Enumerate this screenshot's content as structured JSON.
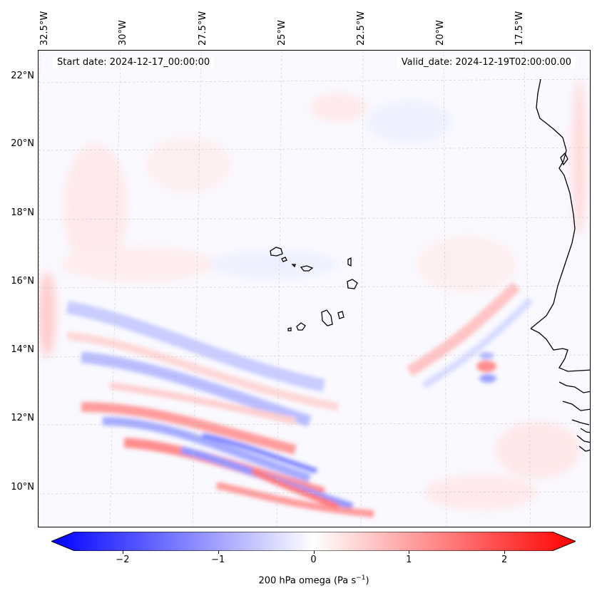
{
  "map": {
    "start_date": "Start date: 2024-12-17_00:00:00",
    "valid_date": "Valid_date: 2024-12-19T02:00:00.00",
    "lon_labels": [
      "32.5°W",
      "30°W",
      "27.5°W",
      "25°W",
      "22.5°W",
      "20°W",
      "17.5°W"
    ],
    "lat_labels": [
      "22°N",
      "20°N",
      "18°N",
      "16°N",
      "14°N",
      "12°N",
      "10°N"
    ],
    "colors": {
      "neg": "#0000ff",
      "pos": "#ff0000",
      "zero": "#ffffff",
      "coast": "#000000"
    }
  },
  "colorbar": {
    "ticks": [
      "−2",
      "−1",
      "0",
      "1",
      "2"
    ],
    "tick_values": [
      -2,
      -1,
      0,
      1,
      2
    ],
    "min": -2.5,
    "max": 2.5,
    "label_prefix": "200 hPa omega (Pa s",
    "label_exp": "−1",
    "label_suffix": ")"
  }
}
